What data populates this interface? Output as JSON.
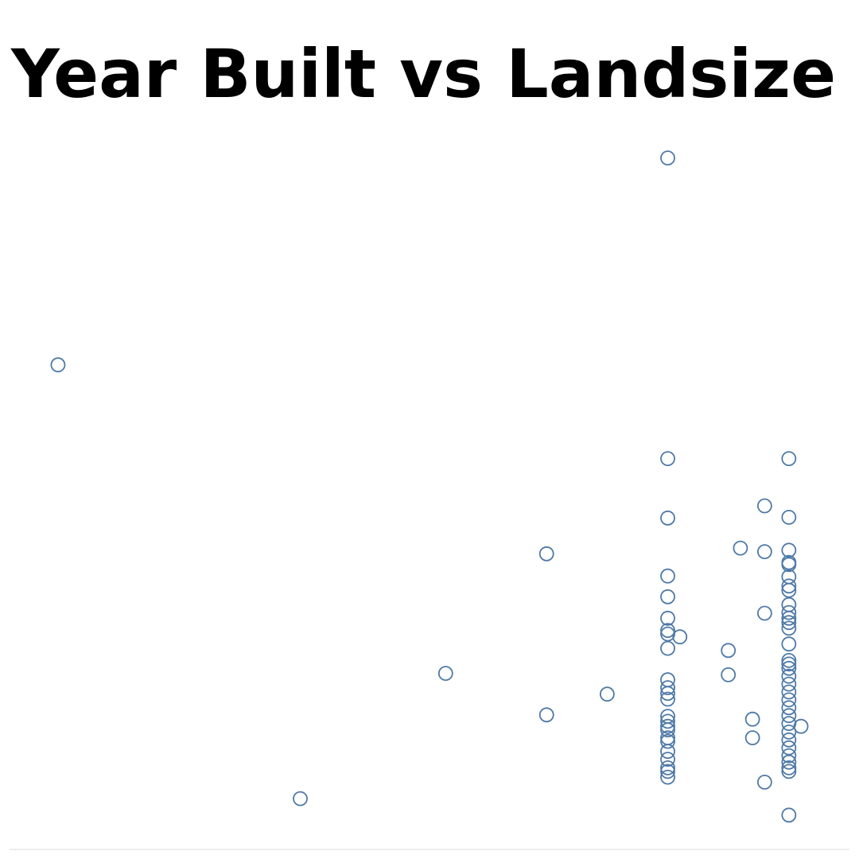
{
  "chart_data": {
    "type": "scatter",
    "title": "Year Built vs Landsize",
    "color": "#4e79a7",
    "xlim": [
      1817,
      2025
    ],
    "ylim": [
      0,
      1000
    ],
    "x": [
      1980,
      1829,
      1980,
      2010,
      2004,
      1980,
      2010,
      1998,
      2004,
      1950,
      2010,
      2010,
      2010,
      1980,
      2010,
      2010,
      2010,
      1980,
      2010,
      2010,
      2004,
      1980,
      2010,
      2010,
      2010,
      1980,
      1980,
      1983,
      1980,
      2010,
      1995,
      2010,
      2010,
      2010,
      1925,
      1995,
      1980,
      2010,
      2010,
      2010,
      2010,
      2010,
      1980,
      1980,
      1980,
      1965,
      1950,
      1980,
      1980,
      2001,
      2013,
      1980,
      1980,
      2010,
      2010,
      2010,
      2010,
      2001,
      1980,
      1980,
      2010,
      2010,
      2010,
      2010,
      2010,
      1980,
      1980,
      1980,
      1980,
      1980,
      2004,
      1889,
      2010
    ],
    "values": [
      966,
      677,
      546,
      546,
      480,
      463,
      464,
      421,
      416,
      413,
      418,
      401,
      398,
      382,
      381,
      368,
      362,
      353,
      342,
      331,
      330,
      323,
      323,
      317,
      309,
      306,
      301,
      297,
      281,
      287,
      278,
      264,
      259,
      253,
      246,
      244,
      237,
      242,
      231,
      220,
      209,
      198,
      226,
      218,
      210,
      217,
      188,
      186,
      179,
      182,
      172,
      172,
      167,
      187,
      176,
      164,
      153,
      156,
      156,
      151,
      142,
      131,
      122,
      114,
      109,
      137,
      126,
      114,
      109,
      101,
      94,
      71,
      48
    ]
  }
}
